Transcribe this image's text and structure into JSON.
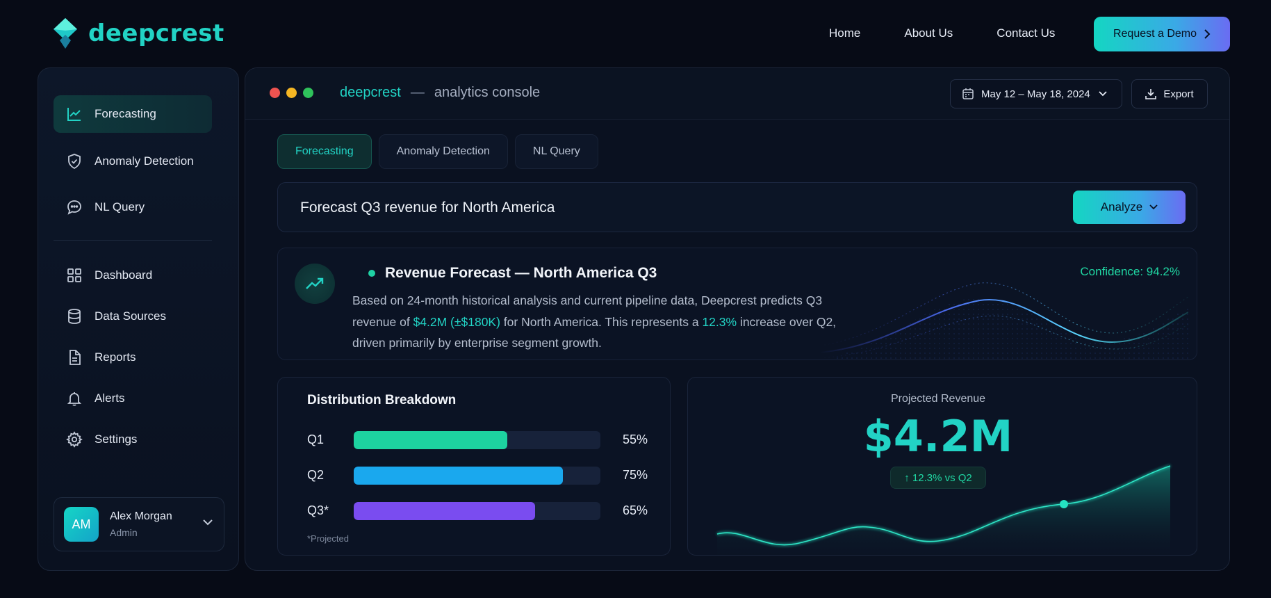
{
  "nav": {
    "brand": "deepcrest",
    "links": [
      "Home",
      "About Us",
      "Contact Us"
    ],
    "cta": "Request a Demo"
  },
  "sidebar": {
    "items": [
      {
        "label": "Forecasting",
        "icon": "line-chart-icon",
        "active": true
      },
      {
        "label": "Anomaly Detection",
        "icon": "shield-check-icon"
      },
      {
        "label": "NL Query",
        "icon": "chat-bubble-icon"
      },
      {
        "label": "Dashboard",
        "icon": "grid-icon"
      },
      {
        "label": "Data Sources",
        "icon": "database-icon"
      },
      {
        "label": "Reports",
        "icon": "document-icon"
      },
      {
        "label": "Alerts",
        "icon": "bell-icon"
      },
      {
        "label": "Settings",
        "icon": "gear-icon"
      }
    ],
    "user": {
      "initials": "AM",
      "name": "Alex Morgan",
      "role": "Admin"
    }
  },
  "console": {
    "brand": "deepcrest",
    "separator": "—",
    "subtitle": "analytics console",
    "date_range": "May 12 – May 18, 2024",
    "export_label": "Export",
    "tabs": [
      "Forecasting",
      "Anomaly Detection",
      "NL Query"
    ],
    "active_tab": "Forecasting",
    "query": "Forecast Q3 revenue for North America",
    "analyze_label": "Analyze"
  },
  "forecast": {
    "title": "Revenue Forecast — North America Q3",
    "confidence": "Confidence: 94.2%",
    "body_1": "Based on 24-month historical analysis and current pipeline data, Deepcrest predicts Q3 revenue of ",
    "amount": "$4.2M (±$180K)",
    "body_2": " for North America. This represents a ",
    "pct": "12.3%",
    "body_3": " increase over Q2, driven primarily by enterprise segment growth."
  },
  "distribution": {
    "title": "Distribution Breakdown",
    "rows": [
      {
        "label": "Q1",
        "value": 55,
        "pct": "55%",
        "color": "#1dd3a0"
      },
      {
        "label": "Q2",
        "value": 75,
        "pct": "75%",
        "color": "#1aa8ee"
      },
      {
        "label": "Q3*",
        "value": 65,
        "pct": "65%",
        "color": "#7a4cf0"
      }
    ],
    "note": "*Projected"
  },
  "revenue": {
    "label": "Projected Revenue",
    "value": "$4.2M",
    "delta": "↑ 12.3% vs Q2"
  },
  "colors": {
    "accent": "#22d3c5",
    "green": "#20d7a3",
    "bg": "#070b16"
  }
}
